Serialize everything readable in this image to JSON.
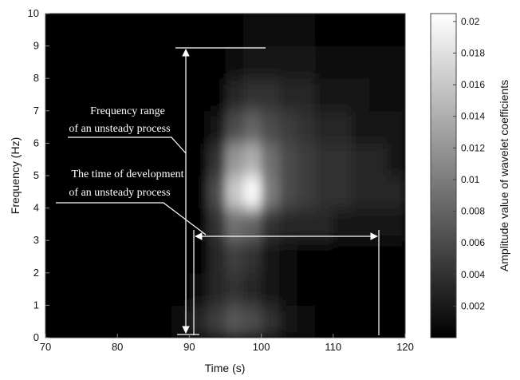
{
  "chart_data": {
    "type": "heatmap",
    "xlabel": "Time (s)",
    "ylabel": "Frequency (Hz)",
    "colorbar_label": "Amplitude value of wavelet coefficients",
    "xlim": [
      70,
      120
    ],
    "xticks": [
      70,
      80,
      90,
      100,
      110,
      120
    ],
    "ylim": [
      0,
      10
    ],
    "yticks": [
      0,
      1,
      2,
      3,
      4,
      5,
      6,
      7,
      8,
      9,
      10
    ],
    "clim": [
      0,
      0.0205
    ],
    "cticks": [
      0.002,
      0.004,
      0.006,
      0.008,
      0.01,
      0.012,
      0.014,
      0.016,
      0.018,
      0.02
    ],
    "colormap": "gray",
    "xbins": [
      70,
      72.5,
      75,
      77.5,
      80,
      82.5,
      85,
      87.5,
      90,
      92.5,
      95,
      97.5,
      100,
      102.5,
      105,
      107.5,
      110,
      112.5,
      115,
      117.5,
      120
    ],
    "ybins": [
      0,
      1,
      2,
      3,
      4,
      5,
      6,
      7,
      8,
      9,
      10
    ],
    "z": [
      [
        0,
        0,
        0,
        0,
        0,
        0,
        0,
        0.001,
        0.003,
        0.005,
        0.007,
        0.006,
        0.004,
        0.002,
        0.001,
        0,
        0,
        0,
        0,
        0
      ],
      [
        0,
        0,
        0,
        0,
        0,
        0,
        0,
        0,
        0.001,
        0.003,
        0.004,
        0.003,
        0.002,
        0.001,
        0,
        0,
        0,
        0,
        0,
        0
      ],
      [
        0,
        0,
        0,
        0,
        0,
        0,
        0,
        0,
        0,
        0.003,
        0.005,
        0.004,
        0.002,
        0.001,
        0,
        0,
        0,
        0,
        0,
        0
      ],
      [
        0,
        0,
        0,
        0,
        0,
        0,
        0,
        0,
        0,
        0.004,
        0.009,
        0.008,
        0.004,
        0.003,
        0.003,
        0.003,
        0.002,
        0.002,
        0.002,
        0.002
      ],
      [
        0,
        0,
        0,
        0,
        0,
        0,
        0,
        0,
        0,
        0.006,
        0.016,
        0.02,
        0.01,
        0.006,
        0.005,
        0.004,
        0.004,
        0.003,
        0.003,
        0.003
      ],
      [
        0,
        0,
        0,
        0,
        0,
        0,
        0,
        0,
        0,
        0.004,
        0.012,
        0.014,
        0.009,
        0.006,
        0.005,
        0.004,
        0.004,
        0.003,
        0.003,
        0.002
      ],
      [
        0,
        0,
        0,
        0,
        0,
        0,
        0,
        0,
        0,
        0.002,
        0.006,
        0.008,
        0.006,
        0.005,
        0.004,
        0.003,
        0.003,
        0.002,
        0.002,
        0.002
      ],
      [
        0,
        0,
        0,
        0,
        0,
        0,
        0,
        0,
        0,
        0,
        0.003,
        0.004,
        0.004,
        0.003,
        0.003,
        0.002,
        0.002,
        0.002,
        0.001,
        0.001
      ],
      [
        0,
        0,
        0,
        0,
        0,
        0,
        0,
        0,
        0,
        0,
        0.001,
        0.002,
        0.002,
        0.002,
        0.002,
        0.001,
        0.001,
        0.001,
        0.001,
        0.001
      ],
      [
        0,
        0,
        0,
        0,
        0,
        0,
        0,
        0,
        0,
        0,
        0,
        0.001,
        0.001,
        0.001,
        0.001,
        0,
        0,
        0,
        0,
        0
      ]
    ],
    "annotations": [
      [
        "Frequency range",
        "of an unsteady process"
      ],
      [
        "The time of development",
        "of an unsteady process"
      ]
    ]
  }
}
